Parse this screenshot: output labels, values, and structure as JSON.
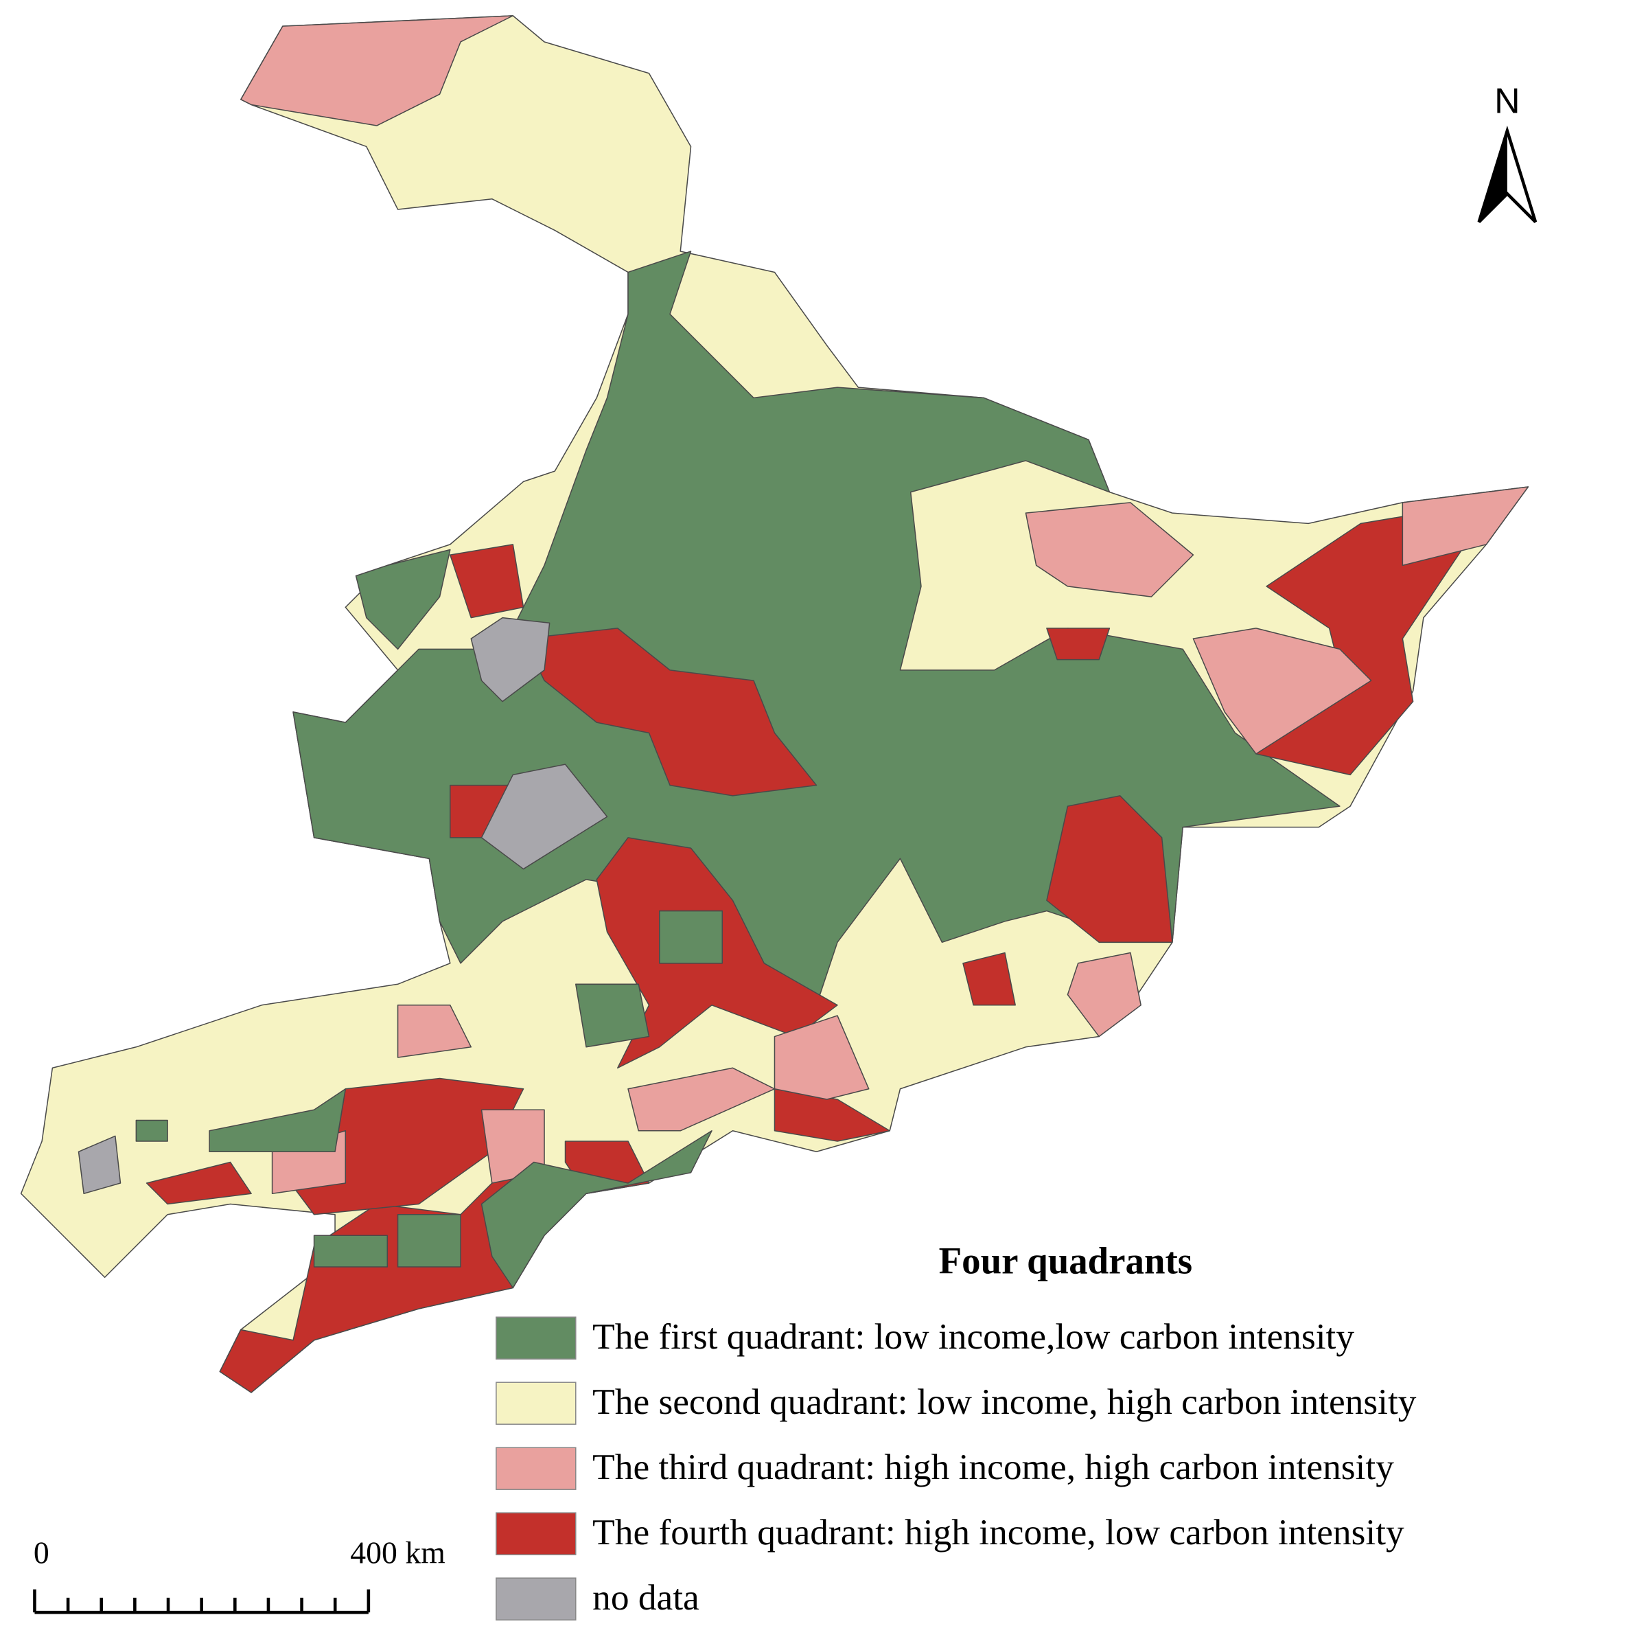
{
  "map": {
    "north_label": "N",
    "legend": {
      "title": "Four quadrants",
      "items": [
        {
          "label": "The first quadrant: low income,low carbon intensity",
          "color": "#628c62"
        },
        {
          "label": "The second quadrant: low income, high carbon intensity",
          "color": "#f6f3c3"
        },
        {
          "label": "The third quadrant: high income, high carbon intensity",
          "color": "#e9a19e"
        },
        {
          "label": "The fourth quadrant: high income, low carbon intensity",
          "color": "#c3302b"
        },
        {
          "label": "no data",
          "color": "#a8a7ac"
        }
      ]
    },
    "scale_bar": {
      "labels": [
        "0",
        "400 km"
      ]
    }
  }
}
